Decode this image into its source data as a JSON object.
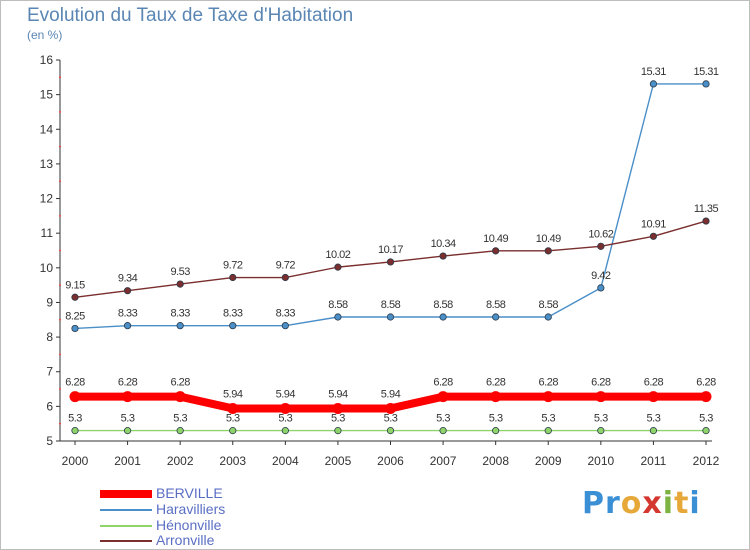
{
  "page": {
    "title": "Evolution du Taux de Taxe d'Habitation",
    "unit": "(en %)"
  },
  "logo": {
    "letters": [
      {
        "ch": "P",
        "color": "#3b8fd4"
      },
      {
        "ch": "r",
        "color": "#3b8fd4"
      },
      {
        "ch": "o",
        "color": "#e7a83a"
      },
      {
        "ch": "x",
        "color": "#d4372f"
      },
      {
        "ch": "i",
        "color": "#7cb342"
      },
      {
        "ch": "t",
        "color": "#e7a83a"
      },
      {
        "ch": "i",
        "color": "#3b8fd4"
      }
    ]
  },
  "chart_data": {
    "type": "line",
    "title": "Evolution du Taux de Taxe d'Habitation",
    "ylabel": "(en %)",
    "xlabel": "",
    "ylim": [
      5,
      16
    ],
    "yticks": [
      5,
      6,
      7,
      8,
      9,
      10,
      11,
      12,
      13,
      14,
      15,
      16
    ],
    "x": [
      "2000",
      "2001",
      "2002",
      "2003",
      "2004",
      "2005",
      "2006",
      "2007",
      "2008",
      "2009",
      "2010",
      "2011",
      "2012"
    ],
    "grid": false,
    "legend": "bottom-left",
    "series": [
      {
        "name": "BERVILLE",
        "color": "#ff0000",
        "values": [
          6.28,
          6.28,
          6.28,
          5.94,
          5.94,
          5.94,
          5.94,
          6.28,
          6.28,
          6.28,
          6.28,
          6.28,
          6.28
        ],
        "labels": [
          "6.28",
          "6.28",
          "6.28",
          "5.94",
          "5.94",
          "5.94",
          "5.94",
          "6.28",
          "6.28",
          "6.28",
          "6.28",
          "6.28",
          "6.28"
        ]
      },
      {
        "name": "Haravilliers",
        "color": "#4a8fc8",
        "values": [
          8.25,
          8.33,
          8.33,
          8.33,
          8.33,
          8.58,
          8.58,
          8.58,
          8.58,
          8.58,
          9.42,
          15.31,
          15.31
        ],
        "labels": [
          "8.25",
          "8.33",
          "8.33",
          "8.33",
          "8.33",
          "8.58",
          "8.58",
          "8.58",
          "8.58",
          "8.58",
          "9.42",
          "15.31",
          "15.31"
        ]
      },
      {
        "name": "Hénonville",
        "color": "#8fd46a",
        "values": [
          5.3,
          5.3,
          5.3,
          5.3,
          5.3,
          5.3,
          5.3,
          5.3,
          5.3,
          5.3,
          5.3,
          5.3,
          5.3
        ],
        "labels": [
          "5.3",
          "5.3",
          "5.3",
          "5.3",
          "5.3",
          "5.3",
          "5.3",
          "5.3",
          "5.3",
          "5.3",
          "5.3",
          "5.3",
          "5.3"
        ]
      },
      {
        "name": "Arronville",
        "color": "#7a2e2e",
        "values": [
          9.15,
          9.34,
          9.53,
          9.72,
          9.72,
          10.02,
          10.17,
          10.34,
          10.49,
          10.49,
          10.62,
          10.91,
          11.35
        ],
        "labels": [
          "9.15",
          "9.34",
          "9.53",
          "9.72",
          "9.72",
          "10.02",
          "10.17",
          "10.34",
          "10.49",
          "10.49",
          "10.62",
          "10.91",
          "11.35"
        ]
      }
    ]
  }
}
